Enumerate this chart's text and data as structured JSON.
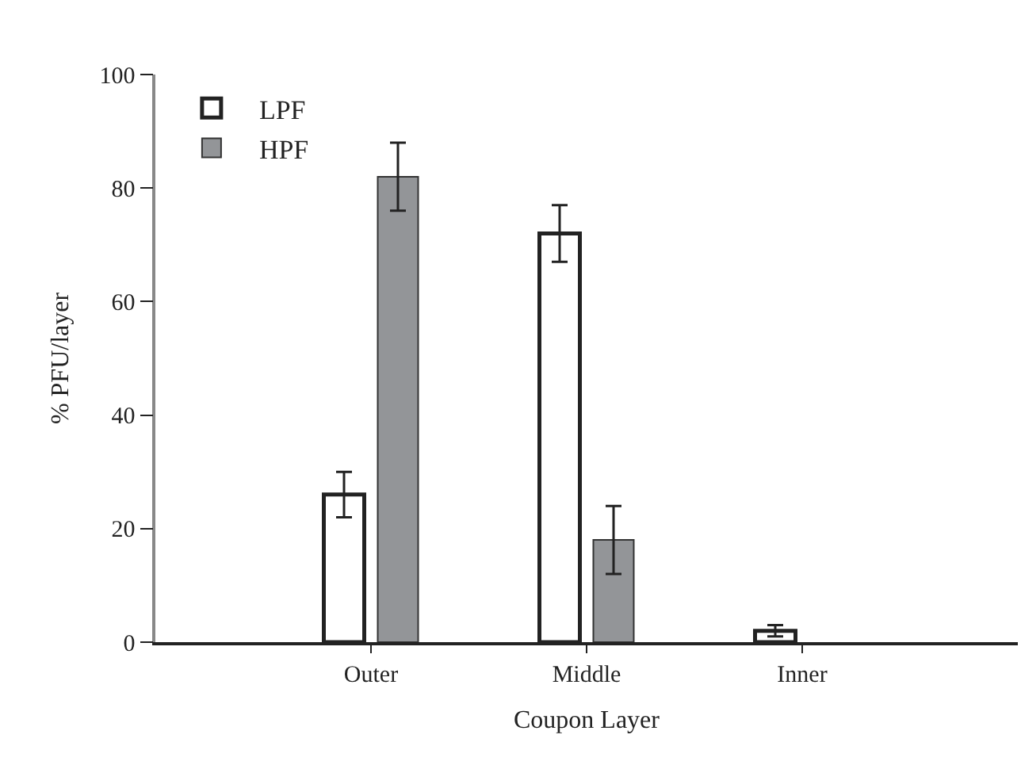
{
  "chart_data": {
    "type": "bar",
    "xlabel": "Coupon Layer",
    "ylabel": "% PFU/layer",
    "categories": [
      "Outer",
      "Middle",
      "Inner"
    ],
    "series": [
      {
        "name": "LPF",
        "color": "#ffffff",
        "values": [
          26,
          72,
          2
        ],
        "errors": [
          4,
          5,
          1
        ]
      },
      {
        "name": "HPF",
        "color": "#939598",
        "values": [
          82,
          18,
          null
        ],
        "errors": [
          6,
          6,
          null
        ]
      }
    ],
    "ylim": [
      0,
      100
    ],
    "yticks": [
      0,
      20,
      40,
      60,
      80,
      100
    ],
    "legend": "top left"
  }
}
